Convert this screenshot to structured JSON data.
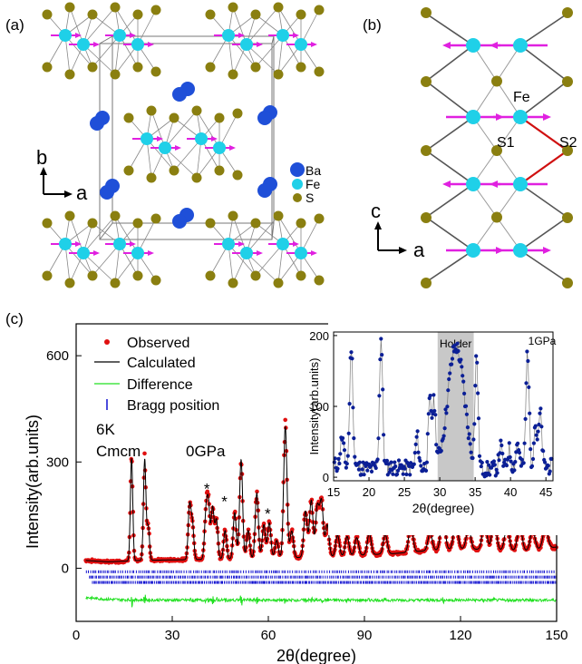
{
  "panels": {
    "a": {
      "label": "(a)",
      "axis_b": "b",
      "axis_a": "a",
      "legend": [
        {
          "name": "Ba",
          "color": "#1f4fd8"
        },
        {
          "name": "Fe",
          "color": "#1fd0e8"
        },
        {
          "name": "S",
          "color": "#8a7f10"
        }
      ]
    },
    "b": {
      "label": "(b)",
      "atom_fe": "Fe",
      "site_s1": "S1",
      "site_s2": "S2",
      "axis_c": "c",
      "axis_a": "a",
      "spin_color": "#e020e0",
      "bond_color": "#d01010"
    },
    "c": {
      "label": "(c)",
      "temperature": "6K",
      "space_group": "Cmcm",
      "pressure": "0GPa"
    }
  },
  "chart_data": [
    {
      "type": "line",
      "xlabel": "2θ(degree)",
      "ylabel": "Intensity(arb.units)",
      "xlim": [
        0,
        150
      ],
      "ylim": [
        -150,
        690
      ],
      "xticks": [
        0,
        30,
        60,
        90,
        120,
        150
      ],
      "yticks": [
        0,
        300,
        600
      ],
      "legend_position": "top-left",
      "series": [
        {
          "name": "Observed",
          "color": "#e01010",
          "style": "points"
        },
        {
          "name": "Calculated",
          "color": "#000000",
          "style": "line"
        },
        {
          "name": "Difference",
          "color": "#20e020",
          "style": "line",
          "offset": -90
        },
        {
          "name": "Bragg position",
          "color": "#1010d0",
          "style": "ticks"
        }
      ],
      "background": [
        [
          3,
          22
        ],
        [
          10,
          18
        ],
        [
          20,
          22
        ],
        [
          40,
          25
        ],
        [
          60,
          28
        ],
        [
          80,
          33
        ],
        [
          100,
          42
        ],
        [
          110,
          50
        ],
        [
          120,
          55
        ],
        [
          130,
          52
        ],
        [
          140,
          48
        ],
        [
          150,
          60
        ]
      ],
      "peaks": [
        {
          "x": 17.3,
          "y": 290
        },
        {
          "x": 21.4,
          "y": 285
        },
        {
          "x": 22.5,
          "y": 95
        },
        {
          "x": 35.4,
          "y": 150
        },
        {
          "x": 36.3,
          "y": 100
        },
        {
          "x": 40.5,
          "y": 120
        },
        {
          "x": 41.3,
          "y": 150
        },
        {
          "x": 42.6,
          "y": 145
        },
        {
          "x": 43.8,
          "y": 110
        },
        {
          "x": 46.5,
          "y": 80
        },
        {
          "x": 49.5,
          "y": 130
        },
        {
          "x": 51.5,
          "y": 280
        },
        {
          "x": 53.7,
          "y": 80
        },
        {
          "x": 56.4,
          "y": 185
        },
        {
          "x": 58.6,
          "y": 95
        },
        {
          "x": 60.3,
          "y": 100
        },
        {
          "x": 62.6,
          "y": 50
        },
        {
          "x": 65.3,
          "y": 370
        },
        {
          "x": 67.3,
          "y": 75
        },
        {
          "x": 71.6,
          "y": 130
        },
        {
          "x": 73.4,
          "y": 160
        },
        {
          "x": 75.3,
          "y": 140
        },
        {
          "x": 76.6,
          "y": 155
        },
        {
          "x": 78.4,
          "y": 90
        },
        {
          "x": 81.6,
          "y": 60
        },
        {
          "x": 84.6,
          "y": 55
        },
        {
          "x": 87.6,
          "y": 50
        },
        {
          "x": 91.5,
          "y": 60
        },
        {
          "x": 96.5,
          "y": 55
        },
        {
          "x": 104.5,
          "y": 80
        },
        {
          "x": 110.5,
          "y": 50
        },
        {
          "x": 114.5,
          "y": 110
        },
        {
          "x": 118.5,
          "y": 75
        },
        {
          "x": 122.5,
          "y": 60
        },
        {
          "x": 127.5,
          "y": 75
        },
        {
          "x": 130.5,
          "y": 80
        },
        {
          "x": 134.5,
          "y": 65
        },
        {
          "x": 138.5,
          "y": 70
        },
        {
          "x": 142.5,
          "y": 55
        },
        {
          "x": 146.5,
          "y": 60
        }
      ],
      "impurity_markers": [
        {
          "x": 41.0,
          "y": 230,
          "label": "*"
        },
        {
          "x": 46.5,
          "y": 195,
          "label": "*"
        },
        {
          "x": 60.0,
          "y": 160,
          "label": "*"
        }
      ]
    },
    {
      "type": "line",
      "title": "1GPa",
      "xlabel": "2θ(degree)",
      "ylabel": "Intensity(arb.units)",
      "xlim": [
        15,
        46
      ],
      "ylim": [
        -5,
        205
      ],
      "xticks": [
        15,
        20,
        25,
        30,
        35,
        40,
        45
      ],
      "yticks": [
        0,
        100,
        200
      ],
      "color": "#0b1f96",
      "shaded_region": {
        "from": 29.7,
        "to": 34.8,
        "label": "Holder"
      },
      "background": [
        [
          15,
          18
        ],
        [
          20,
          12
        ],
        [
          23,
          14
        ],
        [
          27,
          12
        ],
        [
          30,
          20
        ],
        [
          35,
          10
        ],
        [
          40,
          14
        ],
        [
          45,
          15
        ]
      ],
      "peaks": [
        {
          "x": 17.5,
          "y": 170
        },
        {
          "x": 16.2,
          "y": 40
        },
        {
          "x": 21.7,
          "y": 185
        },
        {
          "x": 26.8,
          "y": 45
        },
        {
          "x": 28.6,
          "y": 90
        },
        {
          "x": 29.2,
          "y": 85
        },
        {
          "x": 31.8,
          "y": 115
        },
        {
          "x": 33.0,
          "y": 95
        },
        {
          "x": 35.2,
          "y": 155
        },
        {
          "x": 38.6,
          "y": 30
        },
        {
          "x": 39.8,
          "y": 25
        },
        {
          "x": 41.0,
          "y": 35
        },
        {
          "x": 42.4,
          "y": 165
        },
        {
          "x": 43.5,
          "y": 60
        },
        {
          "x": 44.2,
          "y": 75
        }
      ]
    }
  ]
}
